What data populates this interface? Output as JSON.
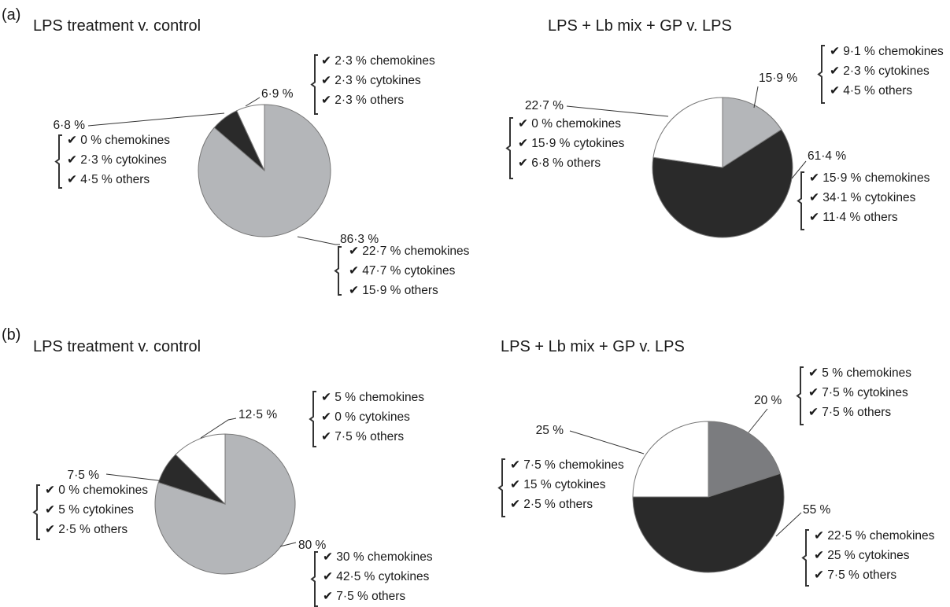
{
  "panels": [
    {
      "label": "(a)"
    },
    {
      "label": "(b)"
    }
  ],
  "colors": {
    "others_slice": "#b4b6b9",
    "dark_slice": "#2a2a2a",
    "white_slice": "#ffffff",
    "mid_slice": "#7b7c7f",
    "outline": "#777777"
  },
  "chart_data": [
    {
      "type": "pie",
      "panel": "(a)",
      "title": "LPS treatment v. control",
      "slices": [
        {
          "label": "86·3 %",
          "value": 86.3,
          "color": "#b4b6b9",
          "details": [
            "22·7 % chemokines",
            "47·7 % cytokines",
            "15·9 % others"
          ]
        },
        {
          "label": "6·8 %",
          "value": 6.8,
          "color": "#2a2a2a",
          "details": [
            "0 % chemokines",
            "2·3 % cytokines",
            "4·5 % others"
          ]
        },
        {
          "label": "6·9 %",
          "value": 6.9,
          "color": "#ffffff",
          "details": [
            "2·3 % chemokines",
            "2·3 % cytokines",
            "2·3 % others"
          ]
        }
      ]
    },
    {
      "type": "pie",
      "panel": "(a)",
      "title": "LPS + Lb mix + GP v. LPS",
      "slices": [
        {
          "label": "15·9 %",
          "value": 15.9,
          "color": "#b4b6b9",
          "details": [
            "9·1 % chemokines",
            "2·3 % cytokines",
            "4·5 % others"
          ]
        },
        {
          "label": "61·4 %",
          "value": 61.4,
          "color": "#2a2a2a",
          "details": [
            "15·9 % chemokines",
            "34·1 % cytokines",
            "11·4 % others"
          ]
        },
        {
          "label": "22·7 %",
          "value": 22.7,
          "color": "#ffffff",
          "details": [
            "0 % chemokines",
            "15·9 % cytokines",
            "6·8 % others"
          ]
        }
      ]
    },
    {
      "type": "pie",
      "panel": "(b)",
      "title": "LPS treatment v. control",
      "slices": [
        {
          "label": "80 %",
          "value": 80,
          "color": "#b4b6b9",
          "details": [
            "30 % chemokines",
            "42·5 % cytokines",
            "7·5 % others"
          ]
        },
        {
          "label": "7·5 %",
          "value": 7.5,
          "color": "#2a2a2a",
          "details": [
            "0 % chemokines",
            "5 % cytokines",
            "2·5 % others"
          ]
        },
        {
          "label": "12·5 %",
          "value": 12.5,
          "color": "#ffffff",
          "details": [
            "5 % chemokines",
            "0 % cytokines",
            "7·5 % others"
          ]
        }
      ]
    },
    {
      "type": "pie",
      "panel": "(b)",
      "title": "LPS + Lb mix + GP v. LPS",
      "slices": [
        {
          "label": "20 %",
          "value": 20,
          "color": "#7b7c7f",
          "details": [
            "5 % chemokines",
            "7·5 % cytokines",
            "7·5 % others"
          ]
        },
        {
          "label": "55 %",
          "value": 55,
          "color": "#2a2a2a",
          "details": [
            "22·5 % chemokines",
            "25 % cytokines",
            "7·5 % others"
          ]
        },
        {
          "label": "25 %",
          "value": 25,
          "color": "#ffffff",
          "details": [
            "7·5 % chemokines",
            "15 % cytokines",
            "2·5 % others"
          ]
        }
      ]
    }
  ]
}
